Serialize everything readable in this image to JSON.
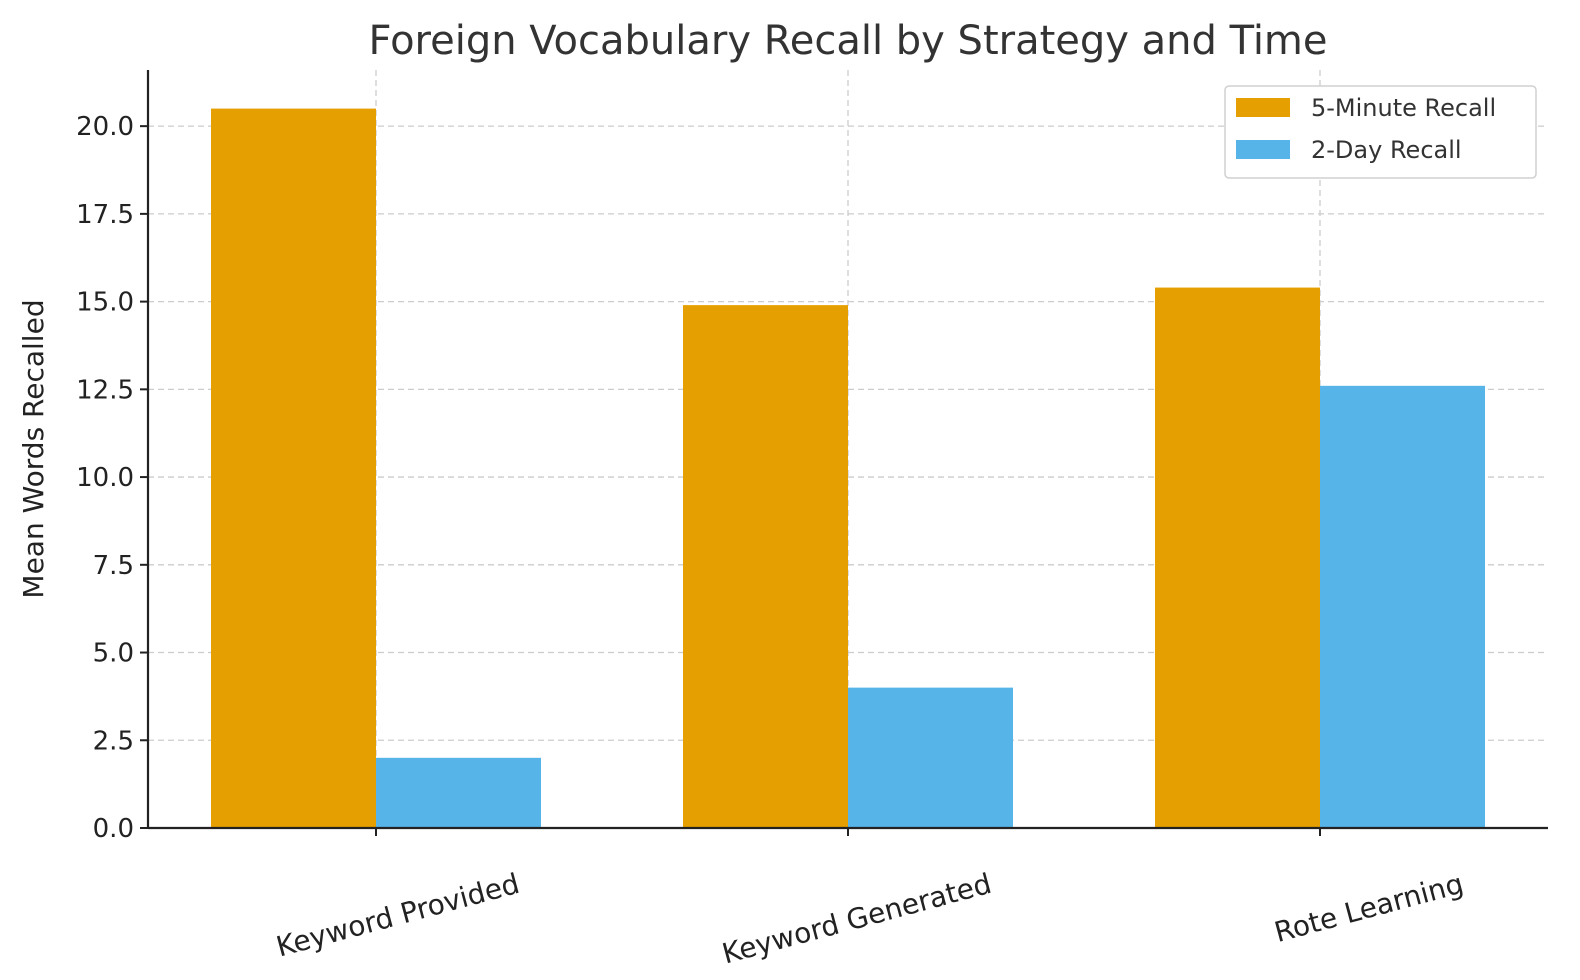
{
  "chart_data": {
    "type": "bar",
    "title": "Foreign Vocabulary Recall by Strategy and Time",
    "xlabel": "",
    "ylabel": "Mean Words Recalled",
    "categories": [
      "Keyword Provided",
      "Keyword Generated",
      "Rote Learning"
    ],
    "series": [
      {
        "name": "5-Minute Recall",
        "values": [
          20.5,
          14.9,
          15.4
        ],
        "color": "#E69F00"
      },
      {
        "name": "2-Day Recall",
        "values": [
          2.0,
          4.0,
          12.6
        ],
        "color": "#56B4E9"
      }
    ],
    "ylim": [
      0,
      21.6
    ],
    "yticks": [
      0.0,
      2.5,
      5.0,
      7.5,
      10.0,
      12.5,
      15.0,
      17.5,
      20.0
    ],
    "ytick_labels": [
      "0.0",
      "2.5",
      "5.0",
      "7.5",
      "10.0",
      "12.5",
      "15.0",
      "17.5",
      "20.0"
    ],
    "grid": true,
    "legend_position": "top-right"
  }
}
